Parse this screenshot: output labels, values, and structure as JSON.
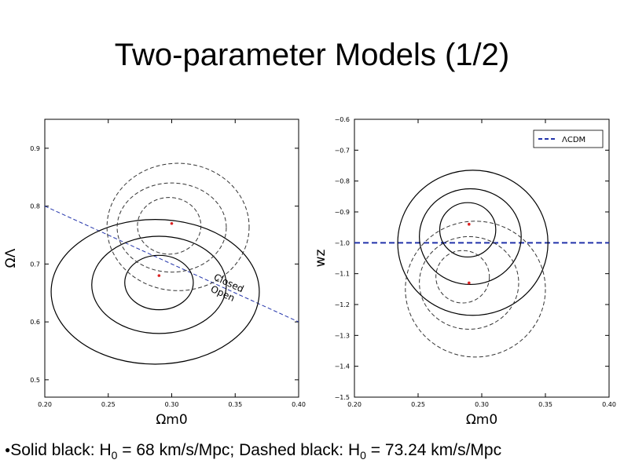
{
  "slide": {
    "title": "Two-parameter Models (1/2)",
    "caption": {
      "bullet": "●",
      "part1": "Solid black: H",
      "sub1": "0",
      "part2": " = 68 km/s/Mpc; Dashed black: H",
      "sub2": "0",
      "part3": " = 73.24 km/s/Mpc"
    }
  },
  "colors": {
    "solid": "#000000",
    "dashed": "#333333",
    "reference": "#2233aa",
    "marker": "#dd2222"
  },
  "chart_data": [
    {
      "type": "contour",
      "xlabel": "Ωm0",
      "ylabel": "ΩΛ",
      "xlim": [
        0.2,
        0.4
      ],
      "ylim": [
        0.47,
        0.95
      ],
      "xticks": [
        "0.20",
        "0.25",
        "0.30",
        "0.35",
        "0.40"
      ],
      "yticks": [
        "0.5",
        "0.6",
        "0.7",
        "0.8",
        "0.9"
      ],
      "xtick_values": [
        0.2,
        0.25,
        0.3,
        0.35,
        0.4
      ],
      "ytick_values": [
        0.5,
        0.6,
        0.7,
        0.8,
        0.9
      ],
      "series": [
        {
          "style": "solid",
          "best_fit": [
            0.29,
            0.68
          ],
          "contours": [
            {
              "center": [
                0.29,
                0.668
              ],
              "rx": 0.027,
              "ry": 0.047
            },
            {
              "center": [
                0.29,
                0.664
              ],
              "rx": 0.053,
              "ry": 0.084
            },
            {
              "center": [
                0.287,
                0.652
              ],
              "rx": 0.082,
              "ry": 0.125
            }
          ]
        },
        {
          "style": "dashed",
          "best_fit": [
            0.3,
            0.77
          ],
          "contours": [
            {
              "center": [
                0.298,
                0.766
              ],
              "rx": 0.025,
              "ry": 0.049
            },
            {
              "center": [
                0.3,
                0.763
              ],
              "rx": 0.043,
              "ry": 0.077
            },
            {
              "center": [
                0.305,
                0.764
              ],
              "rx": 0.056,
              "ry": 0.11
            }
          ]
        }
      ],
      "reference_line": {
        "points": [
          [
            0.2,
            0.8
          ],
          [
            0.4,
            0.6
          ]
        ],
        "labels": [
          "Closed",
          "Open"
        ]
      }
    },
    {
      "type": "contour",
      "xlabel": "Ωm0",
      "ylabel": "wz",
      "xlim": [
        0.2,
        0.4
      ],
      "ylim": [
        -1.5,
        -0.6
      ],
      "xticks": [
        "0.20",
        "0.25",
        "0.30",
        "0.35",
        "0.40"
      ],
      "yticks": [
        "−0.6",
        "−0.7",
        "−0.8",
        "−0.9",
        "−1.0",
        "−1.1",
        "−1.2",
        "−1.3",
        "−1.4",
        "−1.5"
      ],
      "xtick_values": [
        0.2,
        0.25,
        0.3,
        0.35,
        0.4
      ],
      "ytick_values": [
        -0.6,
        -0.7,
        -0.8,
        -0.9,
        -1.0,
        -1.1,
        -1.2,
        -1.3,
        -1.4,
        -1.5
      ],
      "legend": {
        "entries": [
          "ΛCDM"
        ],
        "position": "top-right"
      },
      "reference_line": {
        "y": -1.0
      },
      "series": [
        {
          "style": "solid",
          "best_fit": [
            0.29,
            -0.94
          ],
          "contours": [
            {
              "center": [
                0.289,
                -0.958
              ],
              "rx": 0.022,
              "ry": 0.088
            },
            {
              "center": [
                0.291,
                -0.98
              ],
              "rx": 0.04,
              "ry": 0.155
            },
            {
              "center": [
                0.293,
                -1.0
              ],
              "rx": 0.059,
              "ry": 0.235
            }
          ]
        },
        {
          "style": "dashed",
          "best_fit": [
            0.29,
            -1.13
          ],
          "contours": [
            {
              "center": [
                0.285,
                -1.11
              ],
              "rx": 0.021,
              "ry": 0.085
            },
            {
              "center": [
                0.29,
                -1.13
              ],
              "rx": 0.039,
              "ry": 0.15
            },
            {
              "center": [
                0.295,
                -1.15
              ],
              "rx": 0.055,
              "ry": 0.22
            }
          ]
        }
      ]
    }
  ]
}
